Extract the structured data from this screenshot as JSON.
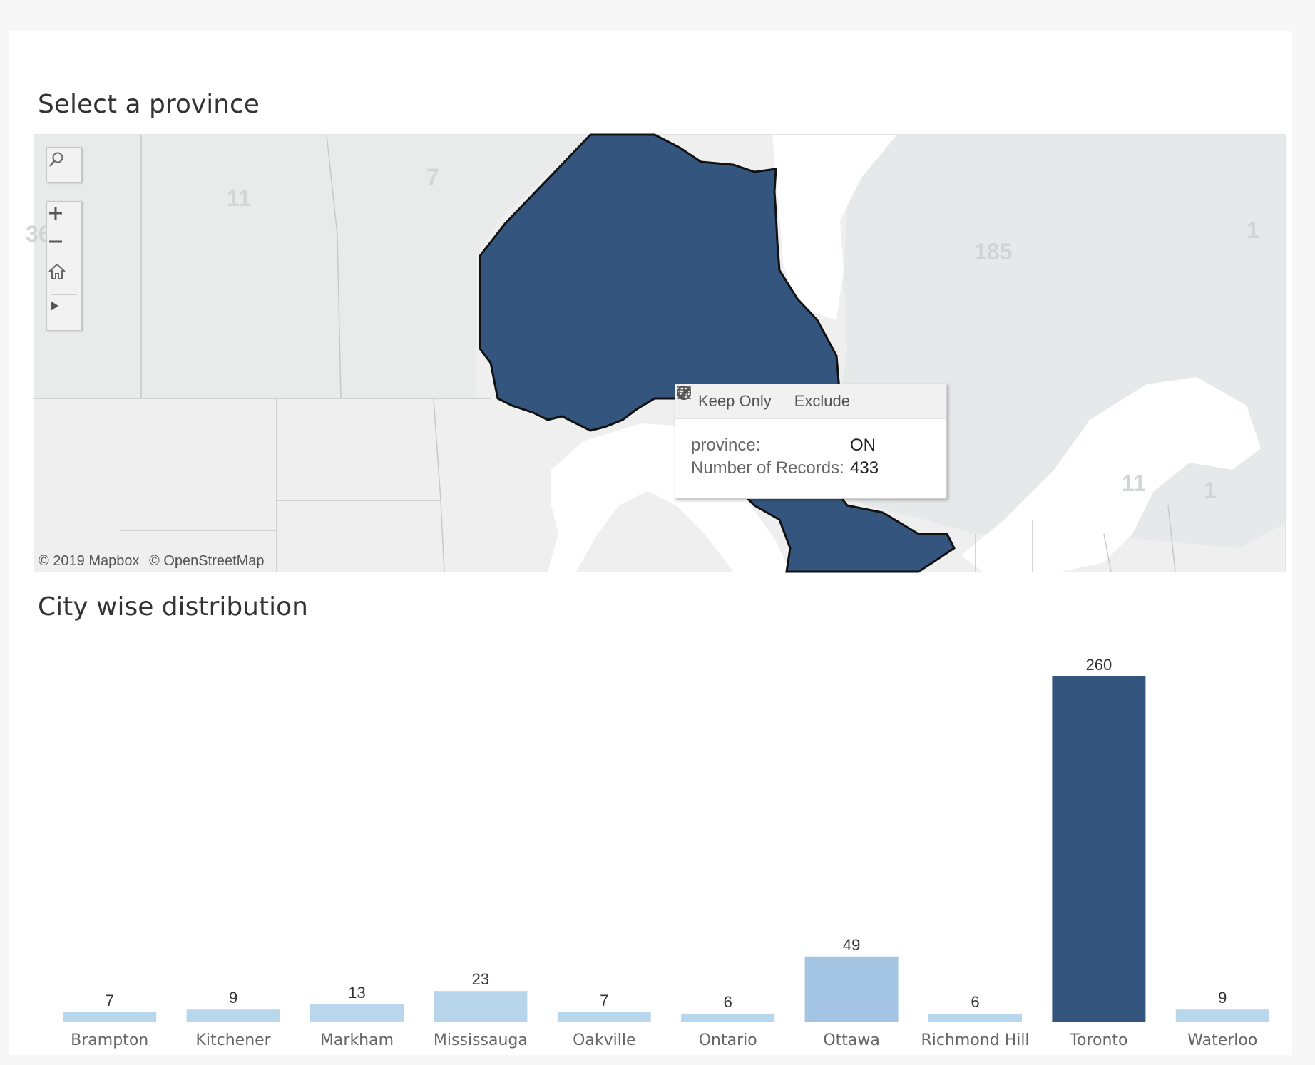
{
  "map_section": {
    "title": "Select a province",
    "province_labels": [
      "11",
      "7",
      "185",
      "1",
      "11",
      "1"
    ],
    "clipped_label": "36",
    "attribution": [
      "© 2019 Mapbox",
      "© OpenStreetMap"
    ],
    "selected_province_color": "#34567e",
    "base_color": "#efefef",
    "water_color": "#ffffff",
    "tooltip": {
      "actions": [
        {
          "label": "Keep Only",
          "icon": "check-icon"
        },
        {
          "label": "Exclude",
          "icon": "exclude-icon"
        },
        {
          "label": "",
          "icon": "view-data-icon"
        }
      ],
      "fields": [
        {
          "label": "province:",
          "value": "ON"
        },
        {
          "label": "Number of Records:",
          "value": "433"
        }
      ]
    },
    "tools": [
      "search-icon",
      "zoom-in-icon",
      "zoom-out-icon",
      "home-icon",
      "play-icon"
    ]
  },
  "chart_section": {
    "title": "City wise distribution"
  },
  "chart_data": {
    "type": "bar",
    "categories": [
      "Brampton",
      "Kitchener",
      "Markham",
      "Mississauga",
      "Oakville",
      "Ontario",
      "Ottawa",
      "Richmond Hill",
      "Toronto",
      "Waterloo"
    ],
    "values": [
      7,
      9,
      13,
      23,
      7,
      6,
      49,
      6,
      260,
      9
    ],
    "colors": [
      "#b9d7ec",
      "#b9d7ec",
      "#b9d7ec",
      "#b6d5eb",
      "#b9d7ec",
      "#b9d7ec",
      "#a3c4e2",
      "#b9d7ec",
      "#34567e",
      "#b9d7ec"
    ],
    "ylim": [
      0,
      260
    ],
    "grid": false,
    "data_labels": true
  }
}
